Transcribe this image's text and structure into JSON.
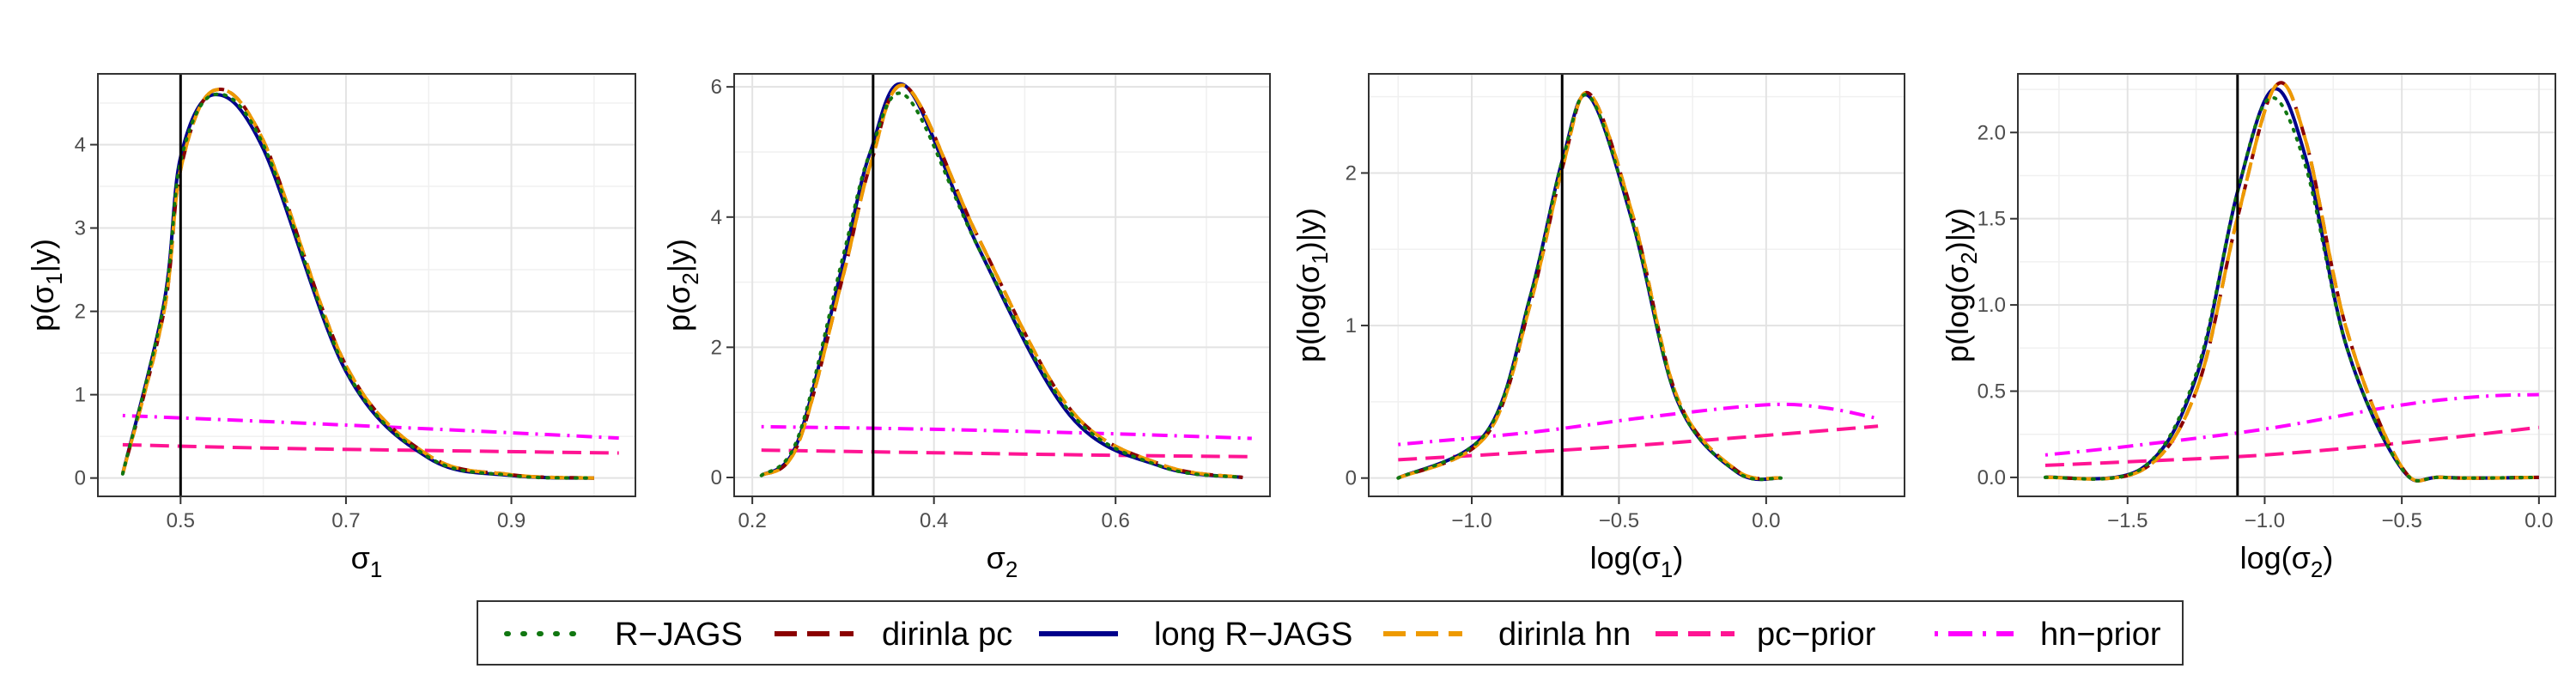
{
  "series_styles": [
    {
      "key": "rjags",
      "name": "R−JAGS",
      "color": "#117711",
      "dash": "dotted"
    },
    {
      "key": "dirinla_pc",
      "name": "dirinla pc",
      "color": "#8b0000",
      "dash": "dashed"
    },
    {
      "key": "long_rjags",
      "name": "long R−JAGS",
      "color": "#00008b",
      "dash": "solid"
    },
    {
      "key": "dirinla_hn",
      "name": "dirinla hn",
      "color": "#ee9a00",
      "dash": "longdash"
    },
    {
      "key": "pc_prior",
      "name": "pc−prior",
      "color": "#ff1493",
      "dash": "longdash"
    },
    {
      "key": "hn_prior",
      "name": "hn−prior",
      "color": "#ff00ff",
      "dash": "dotdash"
    }
  ],
  "chart_data": [
    {
      "type": "line",
      "xlabel_main": "σ",
      "xlabel_sub": "1",
      "xlabel_suffix": "",
      "ylabel_main": "p(σ",
      "ylabel_sub": "1",
      "ylabel_suffix": "|y)",
      "xlim": [
        0.4,
        1.05
      ],
      "ylim": [
        -0.22,
        4.85
      ],
      "xticks": [
        0.5,
        0.7,
        0.9
      ],
      "xticklabels": [
        "0.5",
        "0.7",
        "0.9"
      ],
      "yticks": [
        0,
        1,
        2,
        3,
        4
      ],
      "yticklabels": [
        "0",
        "1",
        "2",
        "3",
        "4"
      ],
      "vline": 0.5,
      "grid": true,
      "series": [
        {
          "key": "rjags",
          "x": [
            0.43,
            0.48,
            0.5,
            0.54,
            0.6,
            0.7,
            0.8,
            0.9,
            1.0
          ],
          "values": [
            0.05,
            2.1,
            3.8,
            4.6,
            4.0,
            1.3,
            0.25,
            0.03,
            0.0
          ]
        },
        {
          "key": "dirinla_pc",
          "x": [
            0.43,
            0.48,
            0.5,
            0.54,
            0.6,
            0.7,
            0.8,
            0.9,
            1.0
          ],
          "values": [
            0.05,
            2.0,
            3.7,
            4.65,
            4.05,
            1.35,
            0.27,
            0.04,
            0.0
          ]
        },
        {
          "key": "long_rjags",
          "x": [
            0.43,
            0.48,
            0.5,
            0.54,
            0.6,
            0.7,
            0.8,
            0.9,
            1.0
          ],
          "values": [
            0.05,
            2.1,
            3.85,
            4.6,
            3.95,
            1.28,
            0.24,
            0.03,
            0.0
          ]
        },
        {
          "key": "dirinla_hn",
          "x": [
            0.43,
            0.48,
            0.5,
            0.54,
            0.6,
            0.7,
            0.8,
            0.9,
            1.0
          ],
          "values": [
            0.05,
            2.0,
            3.7,
            4.65,
            4.05,
            1.35,
            0.27,
            0.04,
            0.0
          ]
        },
        {
          "key": "pc_prior",
          "x": [
            0.43,
            0.6,
            0.8,
            1.03
          ],
          "values": [
            0.4,
            0.36,
            0.33,
            0.3
          ]
        },
        {
          "key": "hn_prior",
          "x": [
            0.43,
            0.6,
            0.8,
            1.03
          ],
          "values": [
            0.75,
            0.68,
            0.59,
            0.48
          ]
        }
      ]
    },
    {
      "type": "line",
      "xlabel_main": "σ",
      "xlabel_sub": "2",
      "xlabel_suffix": "",
      "ylabel_main": "p(σ",
      "ylabel_sub": "2",
      "ylabel_suffix": "|y)",
      "xlim": [
        0.18,
        0.77
      ],
      "ylim": [
        -0.29,
        6.2
      ],
      "xticks": [
        0.2,
        0.4,
        0.6
      ],
      "xticklabels": [
        "0.2",
        "0.4",
        "0.6"
      ],
      "yticks": [
        0,
        2,
        4,
        6
      ],
      "yticklabels": [
        "0",
        "2",
        "4",
        "6"
      ],
      "vline": 0.333,
      "grid": true,
      "series": [
        {
          "key": "rjags",
          "x": [
            0.21,
            0.25,
            0.3,
            0.33,
            0.37,
            0.45,
            0.55,
            0.65,
            0.74
          ],
          "values": [
            0.03,
            0.6,
            3.4,
            5.0,
            5.85,
            3.5,
            1.0,
            0.17,
            0.0
          ]
        },
        {
          "key": "dirinla_pc",
          "x": [
            0.21,
            0.25,
            0.3,
            0.33,
            0.37,
            0.45,
            0.55,
            0.65,
            0.74
          ],
          "values": [
            0.03,
            0.5,
            3.1,
            4.8,
            6.0,
            3.65,
            1.05,
            0.2,
            0.0
          ]
        },
        {
          "key": "long_rjags",
          "x": [
            0.21,
            0.25,
            0.3,
            0.33,
            0.37,
            0.45,
            0.55,
            0.65,
            0.74
          ],
          "values": [
            0.03,
            0.55,
            3.3,
            5.0,
            6.0,
            3.5,
            0.95,
            0.17,
            0.0
          ]
        },
        {
          "key": "dirinla_hn",
          "x": [
            0.21,
            0.25,
            0.3,
            0.33,
            0.37,
            0.45,
            0.55,
            0.65,
            0.74
          ],
          "values": [
            0.03,
            0.5,
            3.1,
            4.8,
            6.0,
            3.65,
            1.05,
            0.2,
            0.0
          ]
        },
        {
          "key": "pc_prior",
          "x": [
            0.21,
            0.4,
            0.6,
            0.75
          ],
          "values": [
            0.42,
            0.38,
            0.34,
            0.32
          ]
        },
        {
          "key": "hn_prior",
          "x": [
            0.21,
            0.4,
            0.6,
            0.75
          ],
          "values": [
            0.78,
            0.74,
            0.67,
            0.6
          ]
        }
      ]
    },
    {
      "type": "line",
      "xlabel_main": "log(σ",
      "xlabel_sub": "1",
      "xlabel_suffix": ")",
      "ylabel_main": "p(log(σ",
      "ylabel_sub": "1",
      "ylabel_suffix": ")|y)",
      "xlim": [
        -1.35,
        0.47
      ],
      "ylim": [
        -0.12,
        2.65
      ],
      "xticks": [
        -1.0,
        -0.5,
        0.0
      ],
      "xticklabels": [
        "−1.0",
        "−0.5",
        "0.0"
      ],
      "yticks": [
        0,
        1,
        2
      ],
      "yticklabels": [
        "0",
        "1",
        "2"
      ],
      "vline": -0.693,
      "grid": true,
      "series": [
        {
          "key": "rjags",
          "x": [
            -1.25,
            -0.95,
            -0.8,
            -0.69,
            -0.6,
            -0.45,
            -0.3,
            -0.1,
            0.05
          ],
          "values": [
            0.0,
            0.3,
            1.2,
            2.1,
            2.5,
            1.65,
            0.5,
            0.04,
            0.0
          ]
        },
        {
          "key": "dirinla_pc",
          "x": [
            -1.25,
            -0.95,
            -0.8,
            -0.69,
            -0.6,
            -0.45,
            -0.3,
            -0.1,
            0.05
          ],
          "values": [
            0.0,
            0.28,
            1.15,
            2.05,
            2.52,
            1.7,
            0.52,
            0.05,
            0.0
          ]
        },
        {
          "key": "long_rjags",
          "x": [
            -1.25,
            -0.95,
            -0.8,
            -0.69,
            -0.6,
            -0.45,
            -0.3,
            -0.1,
            0.05
          ],
          "values": [
            0.0,
            0.3,
            1.2,
            2.1,
            2.5,
            1.65,
            0.5,
            0.04,
            0.0
          ]
        },
        {
          "key": "dirinla_hn",
          "x": [
            -1.25,
            -0.95,
            -0.8,
            -0.69,
            -0.6,
            -0.45,
            -0.3,
            -0.1,
            0.05
          ],
          "values": [
            0.0,
            0.28,
            1.15,
            2.05,
            2.52,
            1.7,
            0.52,
            0.05,
            0.0
          ]
        },
        {
          "key": "pc_prior",
          "x": [
            -1.25,
            -0.8,
            -0.4,
            0.0,
            0.38
          ],
          "values": [
            0.12,
            0.17,
            0.22,
            0.28,
            0.34
          ]
        },
        {
          "key": "hn_prior",
          "x": [
            -1.25,
            -0.8,
            -0.4,
            0.0,
            0.2,
            0.38
          ],
          "values": [
            0.22,
            0.3,
            0.4,
            0.48,
            0.46,
            0.39
          ]
        }
      ]
    },
    {
      "type": "line",
      "xlabel_main": "log(σ",
      "xlabel_sub": "2",
      "xlabel_suffix": ")",
      "ylabel_main": "p(log(σ",
      "ylabel_sub": "2",
      "ylabel_suffix": ")|y)",
      "xlim": [
        -1.9,
        0.06
      ],
      "ylim": [
        -0.11,
        2.34
      ],
      "xticks": [
        -1.5,
        -1.0,
        -0.5,
        0.0
      ],
      "xticklabels": [
        "−1.5",
        "−1.0",
        "−0.5",
        "0.0"
      ],
      "yticks": [
        0.0,
        0.5,
        1.0,
        1.5,
        2.0
      ],
      "yticklabels": [
        "0.0",
        "0.5",
        "1.0",
        "1.5",
        "2.0"
      ],
      "vline": -1.099,
      "grid": true,
      "series": [
        {
          "key": "rjags",
          "x": [
            -1.8,
            -1.45,
            -1.25,
            -1.1,
            -0.98,
            -0.85,
            -0.7,
            -0.5,
            -0.35,
            0.0
          ],
          "values": [
            0.0,
            0.05,
            0.6,
            1.65,
            2.2,
            1.8,
            0.75,
            0.05,
            0.0,
            0.0
          ]
        },
        {
          "key": "dirinla_pc",
          "x": [
            -1.8,
            -1.45,
            -1.25,
            -1.1,
            -0.96,
            -0.85,
            -0.7,
            -0.5,
            -0.35,
            0.0
          ],
          "values": [
            0.0,
            0.04,
            0.5,
            1.5,
            2.27,
            1.95,
            0.85,
            0.06,
            0.0,
            0.0
          ]
        },
        {
          "key": "long_rjags",
          "x": [
            -1.8,
            -1.45,
            -1.25,
            -1.1,
            -0.97,
            -0.85,
            -0.7,
            -0.5,
            -0.35,
            0.0
          ],
          "values": [
            0.0,
            0.05,
            0.58,
            1.65,
            2.25,
            1.85,
            0.75,
            0.05,
            0.0,
            0.0
          ]
        },
        {
          "key": "dirinla_hn",
          "x": [
            -1.8,
            -1.45,
            -1.25,
            -1.1,
            -0.96,
            -0.85,
            -0.7,
            -0.5,
            -0.35,
            0.0
          ],
          "values": [
            0.0,
            0.04,
            0.5,
            1.5,
            2.27,
            1.95,
            0.85,
            0.06,
            0.0,
            0.0
          ]
        },
        {
          "key": "pc_prior",
          "x": [
            -1.8,
            -1.5,
            -1.0,
            -0.5,
            0.0
          ],
          "values": [
            0.07,
            0.09,
            0.13,
            0.2,
            0.29
          ]
        },
        {
          "key": "hn_prior",
          "x": [
            -1.8,
            -1.5,
            -1.0,
            -0.5,
            -0.2,
            0.0
          ],
          "values": [
            0.13,
            0.18,
            0.28,
            0.42,
            0.47,
            0.48
          ]
        }
      ]
    }
  ]
}
